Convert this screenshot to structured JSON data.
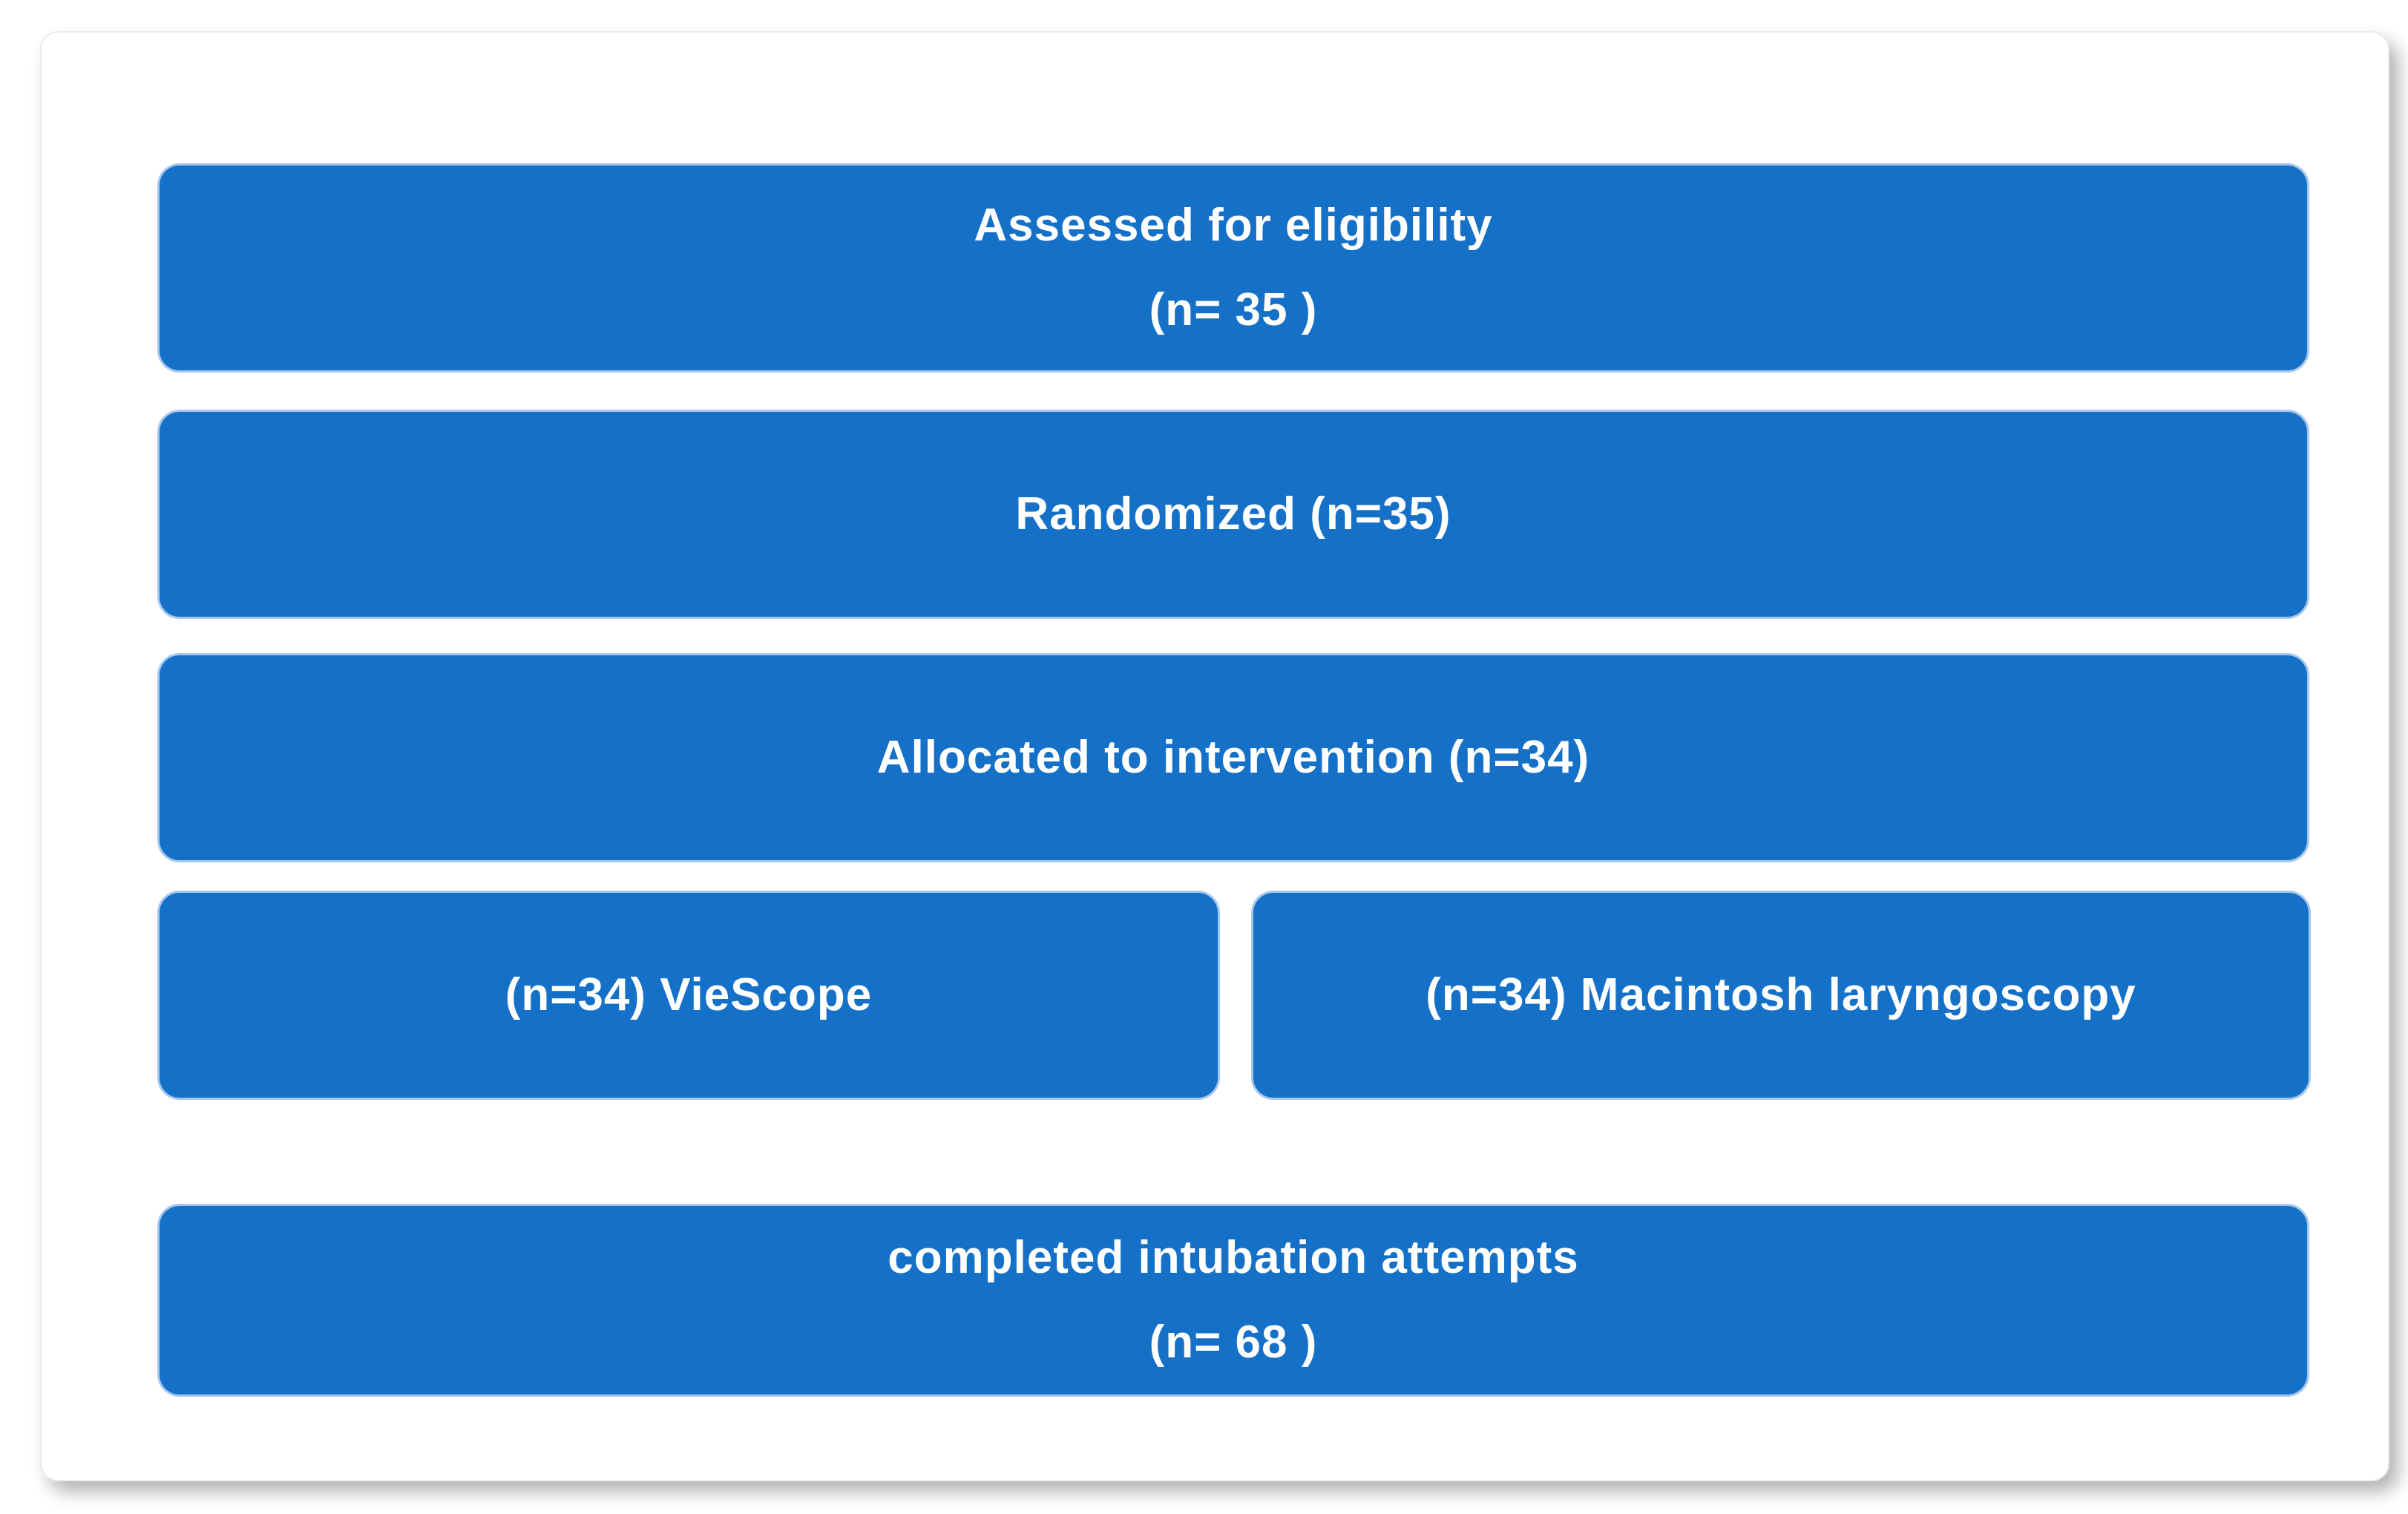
{
  "figure": {
    "kind": "consort-style randomization flow diagram"
  },
  "colors": {
    "page_bg": "#FFFFFF",
    "card_bg": "#FFFFFF",
    "card_border": "#EBEBEE",
    "box_fill": "#1571C8",
    "box_border": "#A7C7EC",
    "box_text": "#FFFFFF"
  },
  "boxes": [
    {
      "id": "assessed",
      "lines": [
        "Assessed for eligibility",
        "(n= 35 )"
      ]
    },
    {
      "id": "randomized",
      "lines": [
        "Randomized (n=35)"
      ]
    },
    {
      "id": "allocated",
      "lines": [
        "Allocated to intervention (n=34)"
      ]
    },
    {
      "id": "viescope",
      "lines": [
        "(n=34) VieScope"
      ]
    },
    {
      "id": "macintosh",
      "lines": [
        "(n=34) Macintosh laryngoscopy"
      ]
    },
    {
      "id": "completed",
      "lines": [
        "completed intubation attempts",
        "(n= 68 )"
      ]
    }
  ]
}
